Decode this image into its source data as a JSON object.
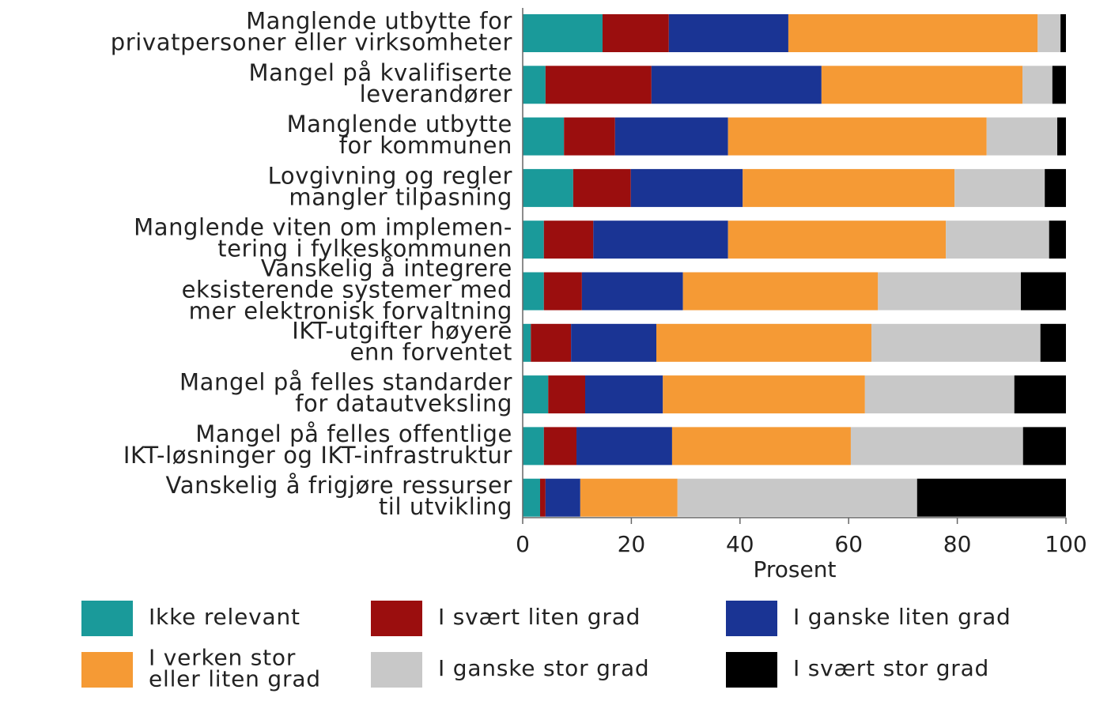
{
  "chart_data": {
    "type": "stacked-barh",
    "categories": [
      "Manglende utbytte for\nprivatpersoner eller virksomheter",
      "Mangel på kvalifiserte\nleverandører",
      "Manglende utbytte\nfor kommunen",
      "Lovgivning og regler\nmangler tilpasning",
      "Manglende viten om implemen-\ntering i fylkeskommunen",
      "Vanskelig å integrere\neksisterende systemer med\nmer elektronisk forvaltning",
      "IKT-utgifter høyere\nenn forventet",
      "Mangel på felles standarder\nfor datautveksling",
      "Mangel på felles offentlige\nIKT-løsninger og IKT-infrastruktur",
      "Vanskelig å frigjøre ressurser\ntil utvikling"
    ],
    "series": [
      {
        "name": "Ikke relevant",
        "color": "#1a9a9a",
        "values": [
          14.7,
          4.2,
          7.6,
          9.3,
          3.9,
          3.9,
          1.5,
          4.7,
          3.9,
          3.2
        ]
      },
      {
        "name": "I svært liten grad",
        "color": "#9b0e0e",
        "values": [
          12.2,
          19.5,
          9.4,
          10.6,
          9.1,
          7.0,
          7.4,
          6.8,
          6.0,
          1.0
        ]
      },
      {
        "name": "I ganske liten grad",
        "color": "#1a3494",
        "values": [
          22.0,
          31.3,
          20.8,
          20.6,
          24.8,
          18.6,
          15.7,
          14.3,
          17.6,
          6.4
        ]
      },
      {
        "name": "I verken stor\neller liten grad",
        "color": "#f59a35",
        "values": [
          45.9,
          37.0,
          47.6,
          39.0,
          40.1,
          35.9,
          39.6,
          37.2,
          32.9,
          17.9
        ]
      },
      {
        "name": "I ganske stor grad",
        "color": "#c8c8c8",
        "values": [
          4.2,
          5.5,
          13.0,
          16.6,
          19.0,
          26.3,
          31.1,
          27.5,
          31.7,
          44.1
        ]
      },
      {
        "name": "I svært stor grad",
        "color": "#000000",
        "values": [
          1.0,
          2.5,
          1.6,
          3.9,
          3.1,
          8.3,
          4.7,
          9.5,
          7.9,
          27.4
        ]
      }
    ],
    "xlabel": "Prosent",
    "xlim": [
      0,
      100
    ],
    "xticks": [
      0,
      20,
      40,
      60,
      80,
      100
    ]
  }
}
